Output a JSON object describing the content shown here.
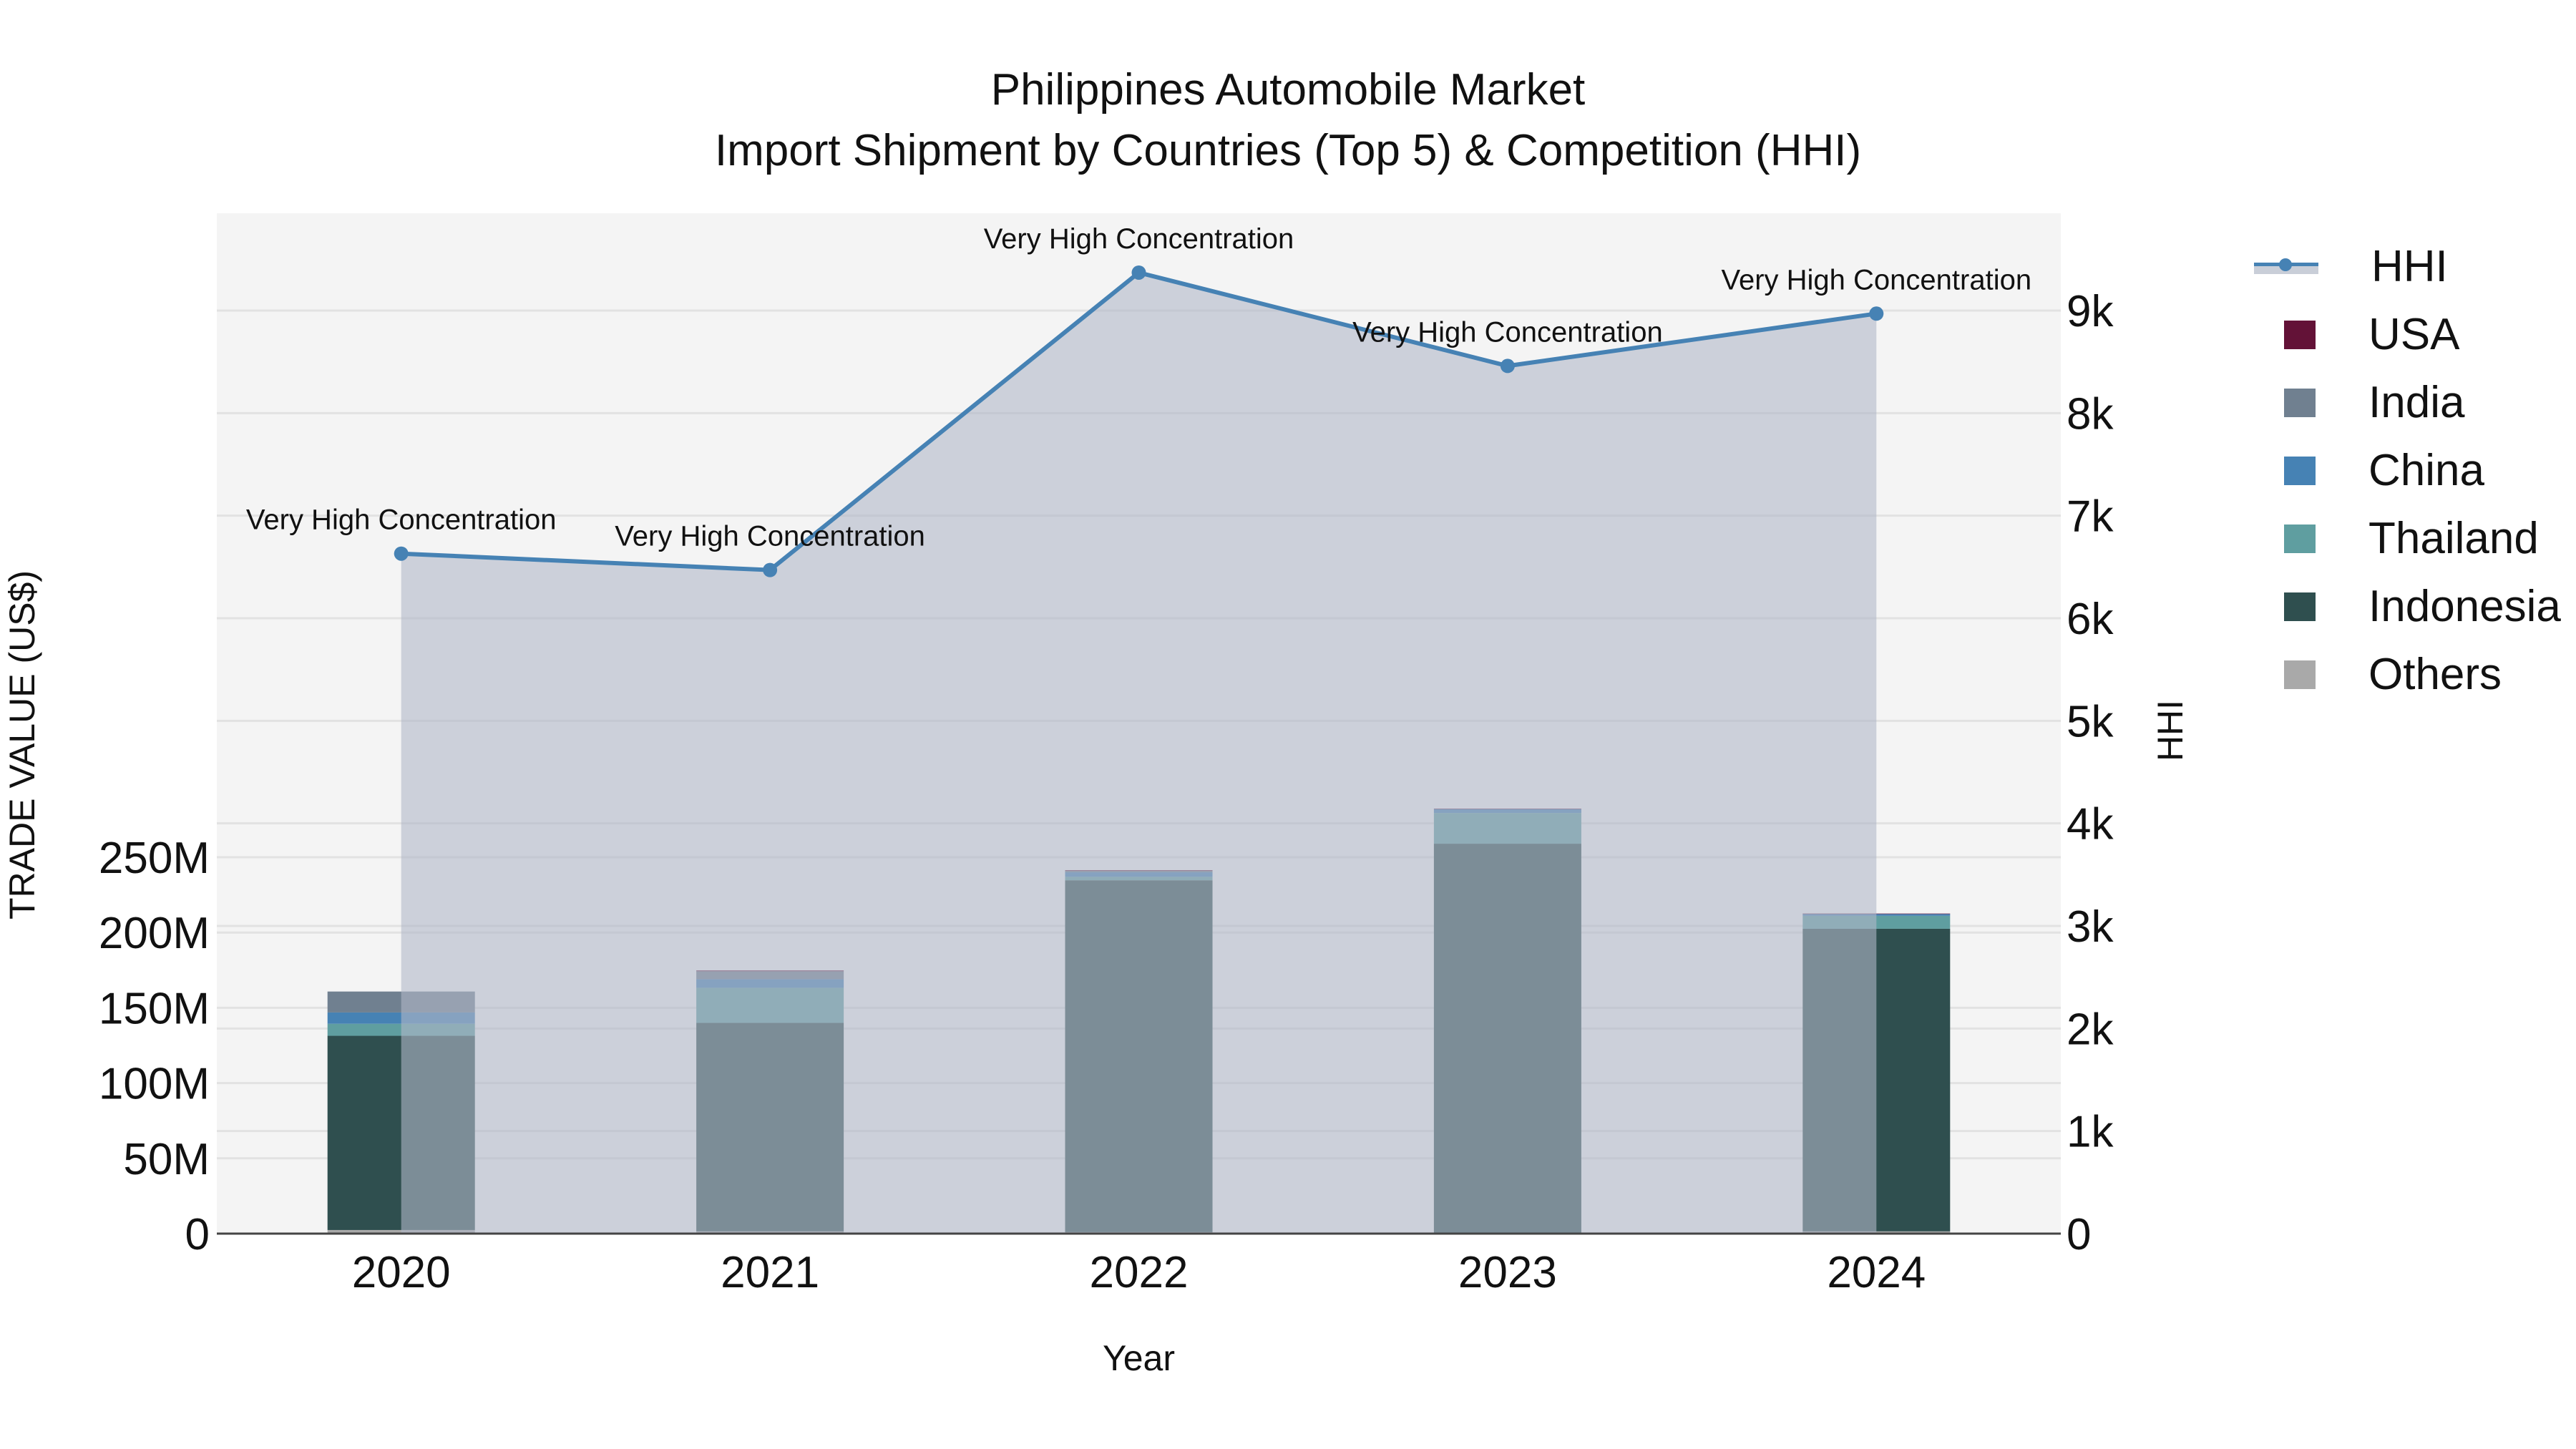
{
  "title": {
    "line1": "Philippines Automobile Market",
    "line2": "Import Shipment by Countries (Top 5) & Competition (HHI)"
  },
  "axes": {
    "x_label": "Year",
    "y_left_label": "TRADE VALUE (US$)",
    "y_right_label": "HHI",
    "y_left_ticks": [
      "0",
      "50M",
      "100M",
      "150M",
      "200M",
      "250M"
    ],
    "y_right_ticks": [
      "0",
      "1k",
      "2k",
      "3k",
      "4k",
      "5k",
      "6k",
      "7k",
      "8k",
      "9k"
    ]
  },
  "legend": [
    {
      "name": "HHI",
      "color": "#4682B4",
      "type": "line"
    },
    {
      "name": "USA",
      "color": "#631237",
      "type": "bar"
    },
    {
      "name": "India",
      "color": "#708090",
      "type": "bar"
    },
    {
      "name": "China",
      "color": "#4682B4",
      "type": "bar"
    },
    {
      "name": "Thailand",
      "color": "#5F9EA0",
      "type": "bar"
    },
    {
      "name": "Indonesia",
      "color": "#2F4F4F",
      "type": "bar"
    },
    {
      "name": "Others",
      "color": "#A9A9A9",
      "type": "bar"
    }
  ],
  "chart_data": {
    "type": "bar",
    "title": "Philippines Automobile Market — Import Shipment by Countries (Top 5) & Competition (HHI)",
    "xlabel": "Year",
    "ylabel": "TRADE VALUE (US$)",
    "y2label": "HHI",
    "categories": [
      "2020",
      "2021",
      "2022",
      "2023",
      "2024"
    ],
    "stacked": true,
    "ylim": [
      0,
      290000000
    ],
    "y2lim": [
      0,
      9800
    ],
    "series": [
      {
        "name": "Others",
        "color": "#A9A9A9",
        "values": [
          2400000,
          1500000,
          1000000,
          500000,
          1500000
        ]
      },
      {
        "name": "Indonesia",
        "color": "#2F4F4F",
        "values": [
          129000000,
          138500000,
          233700000,
          258500000,
          201000000
        ]
      },
      {
        "name": "Thailand",
        "color": "#5F9EA0",
        "values": [
          8000000,
          23300000,
          2300000,
          20400000,
          8600000
        ]
      },
      {
        "name": "China",
        "color": "#4682B4",
        "values": [
          7500000,
          5700000,
          3000000,
          2600000,
          1200000
        ]
      },
      {
        "name": "India",
        "color": "#708090",
        "values": [
          13900000,
          5300000,
          1000000,
          0,
          0
        ]
      },
      {
        "name": "USA",
        "color": "#631237",
        "values": [
          0,
          500000,
          400000,
          300000,
          300000
        ]
      }
    ],
    "line_series": {
      "name": "HHI",
      "axis": "right",
      "color": "#4682B4",
      "fill": "tozeroy",
      "values": [
        6630,
        6470,
        9370,
        8460,
        8970
      ],
      "annotations": [
        "Very High Concentration",
        "Very High Concentration",
        "Very High Concentration",
        "Very High Concentration",
        "Very High Concentration"
      ]
    },
    "grid": true,
    "legend_position": "right"
  }
}
